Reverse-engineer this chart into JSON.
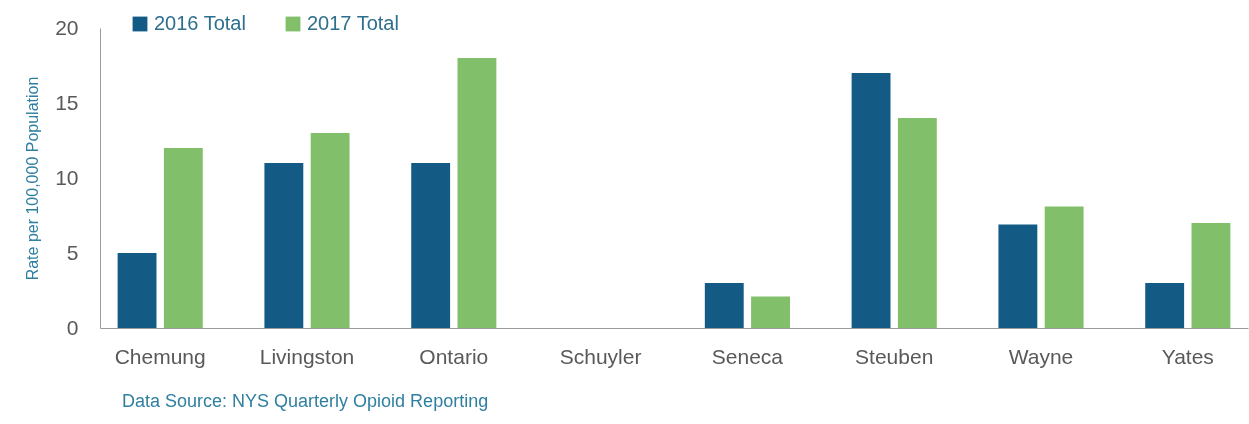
{
  "chart_data": {
    "type": "bar",
    "ylabel": "Rate per 100,000 Population",
    "categories": [
      "Chemung",
      "Livingston",
      "Ontario",
      "Schuyler",
      "Seneca",
      "Steuben",
      "Wayne",
      "Yates"
    ],
    "series": [
      {
        "name": "2016 Total",
        "color": "#135b84",
        "values": [
          5,
          11,
          11,
          null,
          3,
          17,
          6.9,
          3
        ]
      },
      {
        "name": "2017 Total",
        "color": "#82bf6a",
        "values": [
          12,
          13,
          18,
          null,
          2.1,
          14,
          8.1,
          7
        ]
      }
    ],
    "ylim": [
      0,
      20
    ],
    "yticks": [
      0,
      5,
      10,
      15,
      20
    ],
    "grid": false,
    "legend": "top left",
    "annotations": [
      "Data Source: NYS Quarterly Opioid Reporting"
    ]
  }
}
